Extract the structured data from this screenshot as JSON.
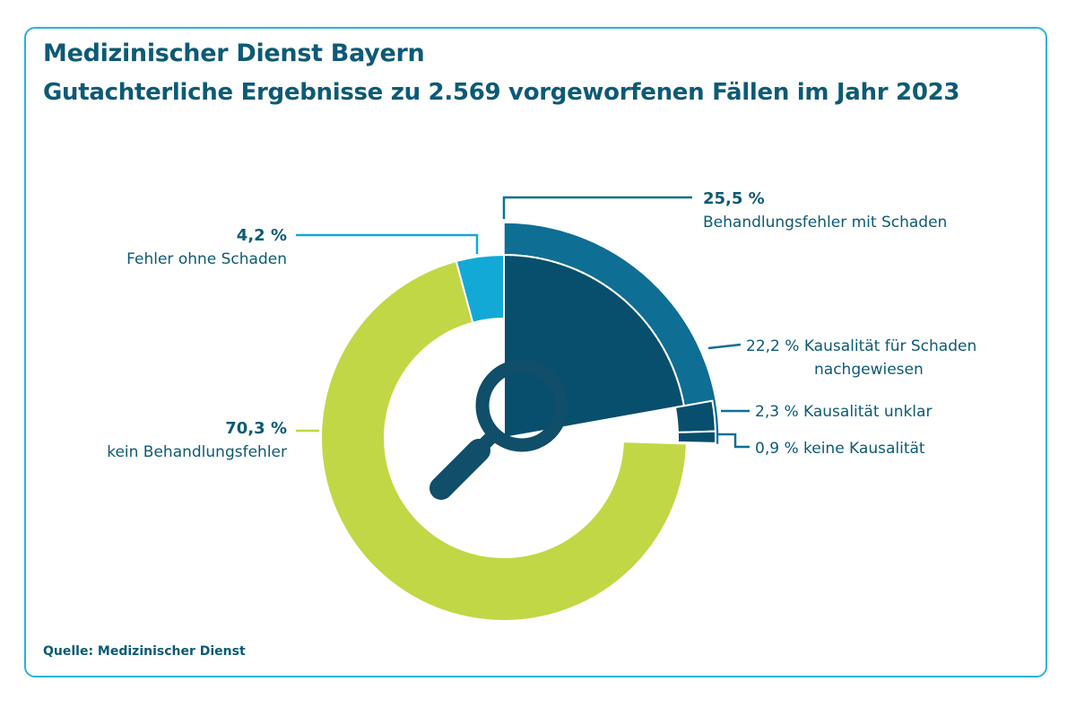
{
  "header": {
    "title": "Medizinischer Dienst Bayern",
    "subtitle": "Gutachterliche Ergebnisse zu 2.569 vorgeworfenen Fällen im Jahr 2023"
  },
  "footer": {
    "source": "Quelle: Medizinischer Dienst"
  },
  "colors": {
    "frame": "#27b3d9",
    "text": "#0d5a75",
    "green": "#c2d745",
    "cyan": "#12a9d6",
    "teal": "#0f6e93",
    "dark": "#074f6d",
    "icon": "#104e6a"
  },
  "icon": "magnifier-icon",
  "chart_data": {
    "type": "pie",
    "subtype": "donut",
    "title": "Gutachterliche Ergebnisse zu 2.569 vorgeworfenen Fällen im Jahr 2023",
    "total_cases": 2569,
    "outer": [
      {
        "name": "Behandlungsfehler mit Schaden",
        "value": 25.5,
        "label": "25,5 %",
        "color": "#0f6e93"
      },
      {
        "name": "kein Behandlungsfehler",
        "value": 70.3,
        "label": "70,3 %",
        "color": "#c2d745"
      },
      {
        "name": "Fehler ohne Schaden",
        "value": 4.2,
        "label": "4,2 %",
        "color": "#12a9d6"
      }
    ],
    "breakdown_of": "Behandlungsfehler mit Schaden",
    "inner": [
      {
        "name": "Kausalität für Schaden nachgewiesen",
        "line1": "Kausalität für Schaden",
        "line2": "nachgewiesen",
        "value": 22.2,
        "label": "22,2 %",
        "color": "#074f6d"
      },
      {
        "name": "Kausalität unklar",
        "value": 2.3,
        "label": "2,3 %",
        "color": "#074f6d"
      },
      {
        "name": "keine Kausalität",
        "value": 0.9,
        "label": "0,9 %",
        "color": "#074f6d"
      }
    ]
  }
}
